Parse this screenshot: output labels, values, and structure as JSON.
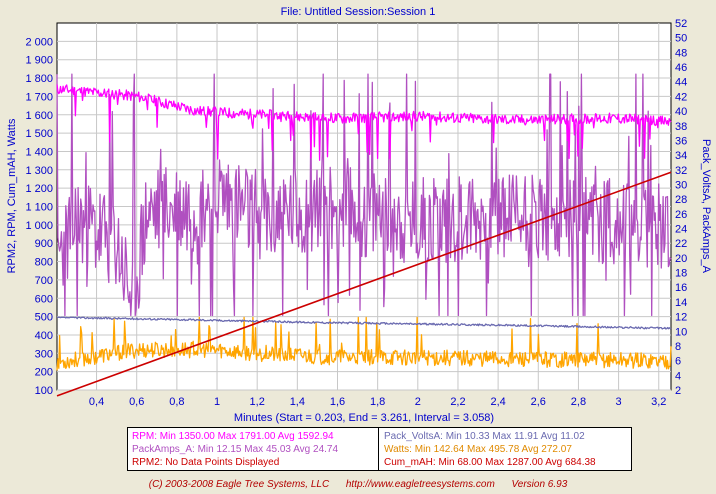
{
  "chart_data": {
    "type": "line",
    "title": "File: Untitled   Session:Session 1",
    "xlabel": "Minutes (Start = 0.203,  End = 3.261,  Interval = 3.058)",
    "ylabel_left": "RPM2, RPM, Cum_mAH, Watts",
    "ylabel_right": "Pack_VoltsA, PackAmps_A",
    "xlim": [
      0.203,
      3.261
    ],
    "ylim_left": [
      100,
      2100
    ],
    "ylim_right": [
      2,
      52
    ],
    "grid": true,
    "x_ticks": [
      "0,4",
      "0,6",
      "0,8",
      "1",
      "1,2",
      "1,4",
      "1,6",
      "1,8",
      "2",
      "2,2",
      "2,4",
      "2,6",
      "2,8",
      "3",
      "3,2"
    ],
    "x_tick_values": [
      0.4,
      0.6,
      0.8,
      1.0,
      1.2,
      1.4,
      1.6,
      1.8,
      2.0,
      2.2,
      2.4,
      2.6,
      2.8,
      3.0,
      3.2
    ],
    "y_left_ticks": [
      "100",
      "200",
      "300",
      "400",
      "500",
      "600",
      "700",
      "800",
      "900",
      "1 000",
      "1 100",
      "1 200",
      "1 300",
      "1 400",
      "1 500",
      "1 600",
      "1 700",
      "1 800",
      "1 900",
      "2 000"
    ],
    "y_left_tick_values": [
      100,
      200,
      300,
      400,
      500,
      600,
      700,
      800,
      900,
      1000,
      1100,
      1200,
      1300,
      1400,
      1500,
      1600,
      1700,
      1800,
      1900,
      2000
    ],
    "y_right_ticks": [
      "2",
      "4",
      "6",
      "8",
      "10",
      "12",
      "14",
      "16",
      "18",
      "20",
      "22",
      "24",
      "26",
      "28",
      "30",
      "32",
      "34",
      "36",
      "38",
      "40",
      "42",
      "44",
      "46",
      "48",
      "50",
      "52"
    ],
    "y_right_tick_values": [
      2,
      4,
      6,
      8,
      10,
      12,
      14,
      16,
      18,
      20,
      22,
      24,
      26,
      28,
      30,
      32,
      34,
      36,
      38,
      40,
      42,
      44,
      46,
      48,
      50,
      52
    ],
    "series": [
      {
        "name": "RPM",
        "axis": "left",
        "color": "#ff00ff",
        "min": 1350.0,
        "max": 1791.0,
        "avg": 1592.94,
        "seed": 11,
        "noise": "pos",
        "anchors": [
          [
            0.203,
            1740
          ],
          [
            0.6,
            1700
          ],
          [
            0.9,
            1620
          ],
          [
            1.2,
            1600
          ],
          [
            1.6,
            1580
          ],
          [
            2.0,
            1590
          ],
          [
            2.5,
            1570
          ],
          [
            3.0,
            1580
          ],
          [
            3.261,
            1560
          ]
        ]
      },
      {
        "name": "PackAmps_A",
        "axis": "right",
        "color": "#b050c0",
        "min": 12.15,
        "max": 45.03,
        "avg": 24.74,
        "seed": 23,
        "noise": "big",
        "anchors": [
          [
            0.203,
            20
          ],
          [
            0.3,
            25
          ],
          [
            0.5,
            22
          ],
          [
            0.58,
            14
          ],
          [
            0.65,
            26
          ],
          [
            0.9,
            27
          ],
          [
            1.0,
            29
          ],
          [
            1.2,
            25
          ],
          [
            1.5,
            27
          ],
          [
            2.0,
            25
          ],
          [
            2.5,
            26
          ],
          [
            3.0,
            25
          ],
          [
            3.261,
            24
          ]
        ]
      },
      {
        "name": "Pack_VoltsA",
        "axis": "right",
        "color": "#6a6ab0",
        "min": 10.33,
        "max": 11.91,
        "avg": 11.02,
        "seed": 37,
        "noise": "tiny",
        "anchors": [
          [
            0.203,
            11.9
          ],
          [
            0.8,
            11.6
          ],
          [
            1.5,
            11.2
          ],
          [
            2.0,
            11.0
          ],
          [
            2.5,
            10.8
          ],
          [
            3.261,
            10.4
          ]
        ]
      },
      {
        "name": "Watts",
        "axis": "left",
        "color": "#ffa500",
        "min": 142.64,
        "max": 495.78,
        "avg": 272.07,
        "seed": 53,
        "noise": "med",
        "anchors": [
          [
            0.203,
            250
          ],
          [
            0.6,
            320
          ],
          [
            1.0,
            320
          ],
          [
            1.2,
            300
          ],
          [
            1.6,
            280
          ],
          [
            2.0,
            280
          ],
          [
            2.5,
            270
          ],
          [
            3.0,
            265
          ],
          [
            3.261,
            260
          ]
        ]
      },
      {
        "name": "Cum_mAH",
        "axis": "left",
        "color": "#cc0000",
        "min": 68.0,
        "max": 1287.0,
        "avg": 684.38,
        "seed": 0,
        "noise": "none",
        "anchors": [
          [
            0.203,
            68
          ],
          [
            3.261,
            1287
          ]
        ]
      }
    ]
  },
  "legend": {
    "rows": [
      {
        "color": "#ff00ff",
        "text": "RPM:  Min 1350.00   Max 1791.00   Avg 1592.94"
      },
      {
        "color": "#b050c0",
        "text": "PackAmps_A:  Min 12.15   Max 45.03   Avg 24.74"
      },
      {
        "color": "#cc0000",
        "text": "RPM2: No Data Points Displayed"
      },
      {
        "color": "#6a6ab0",
        "text": "Pack_VoltsA:  Min 10.33   Max 11.91   Avg 11.02"
      },
      {
        "color": "#e08a00",
        "text": "Watts:  Min 142.64   Max 495.78   Avg 272.07"
      },
      {
        "color": "#cc0000",
        "text": "Cum_mAH:  Min 68.00   Max 1287.00   Avg 684.38"
      }
    ]
  },
  "footer": "(C) 2003-2008 Eagle Tree Systems, LLC      http://www.eagletreesystems.com      Version 6.93",
  "colors": {
    "background": "#ece9d8",
    "plot_bg": "#ffffff",
    "grid": "#c8c8c8",
    "axis_text": "#0000cc",
    "title": "#0000cc"
  }
}
